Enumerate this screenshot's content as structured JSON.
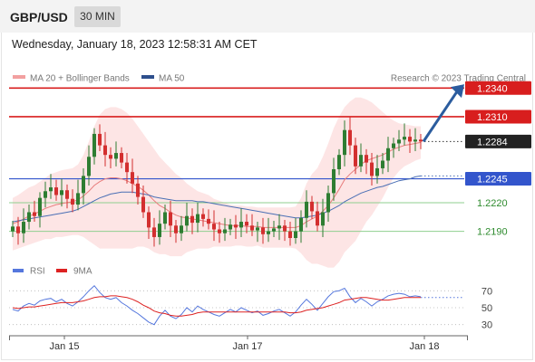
{
  "header": {
    "symbol": "GBP/USD",
    "timeframe": "30 MIN",
    "timestamp": "Wednesday, January 18, 2023 12:58:31 AM CET"
  },
  "legend": {
    "ma20_bb": "MA 20 + Bollinger Bands",
    "ma50": "MA 50",
    "credit": "Research © 2023 Trading Central",
    "rsi": "RSI",
    "rsi_ma": "9MA"
  },
  "colors": {
    "resistance": "#d81e1e",
    "support": "#3355cc",
    "pivot_support": "#8fcf8f",
    "current_price": "#222222",
    "bullish_candle": "#2e7d32",
    "bearish_candle": "#d32f2f",
    "bollinger_fill": "#fde0e0",
    "ma20": "#e87d7d",
    "ma50": "#4a6fb5",
    "rsi_line": "#5577dd",
    "rsi_ma_line": "#dd2222",
    "arrow": "#2b5c9e"
  },
  "chart_data": {
    "type": "candlestick",
    "instrument": "GBP/USD",
    "interval": "30 min",
    "ylim": [
      1.2165,
      1.2345
    ],
    "x_ticks": [
      "Jan 15",
      "Jan 17",
      "Jan 18"
    ],
    "current_price": 1.2284,
    "levels": [
      {
        "label": "1.2340",
        "value": 1.234,
        "kind": "resistance"
      },
      {
        "label": "1.2310",
        "value": 1.231,
        "kind": "resistance"
      },
      {
        "label": "1.2284",
        "value": 1.2284,
        "kind": "current"
      },
      {
        "label": "1.2245",
        "value": 1.2245,
        "kind": "support"
      },
      {
        "label": "1.2220",
        "value": 1.222,
        "kind": "pivot"
      },
      {
        "label": "1.2190",
        "value": 1.219,
        "kind": "pivot"
      }
    ],
    "forecast": "bullish",
    "close": [
      1.2195,
      1.2188,
      1.22,
      1.221,
      1.2206,
      1.2225,
      1.2232,
      1.2236,
      1.2228,
      1.2233,
      1.2224,
      1.2218,
      1.223,
      1.2248,
      1.2268,
      1.2292,
      1.228,
      1.227,
      1.2266,
      1.2272,
      1.2262,
      1.2252,
      1.224,
      1.2226,
      1.221,
      1.2194,
      1.2184,
      1.2198,
      1.221,
      1.2196,
      1.2188,
      1.2196,
      1.2206,
      1.2199,
      1.2208,
      1.2203,
      1.2198,
      1.2192,
      1.2188,
      1.2192,
      1.2197,
      1.2194,
      1.22,
      1.2196,
      1.2191,
      1.2194,
      1.2187,
      1.219,
      1.2193,
      1.2196,
      1.219,
      1.2183,
      1.219,
      1.2204,
      1.2221,
      1.2211,
      1.2196,
      1.221,
      1.223,
      1.2255,
      1.227,
      1.2296,
      1.228,
      1.2258,
      1.227,
      1.2262,
      1.2248,
      1.2256,
      1.2264,
      1.2277,
      1.2282,
      1.2286,
      1.2289,
      1.2284,
      1.2286,
      1.2284
    ],
    "ma20": [
      1.2198,
      1.22,
      1.2203,
      1.2206,
      1.2208,
      1.2211,
      1.2214,
      1.2216,
      1.2218,
      1.2219,
      1.222,
      1.2221,
      1.2223,
      1.2227,
      1.2232,
      1.2238,
      1.2242,
      1.2245,
      1.2246,
      1.2246,
      1.2245,
      1.2243,
      1.224,
      1.2237,
      1.2233,
      1.2228,
      1.2222,
      1.2217,
      1.2214,
      1.221,
      1.2207,
      1.2205,
      1.2204,
      1.2203,
      1.2202,
      1.2201,
      1.22,
      1.2199,
      1.2198,
      1.2197,
      1.2196,
      1.2196,
      1.2196,
      1.2195,
      1.2195,
      1.2195,
      1.2194,
      1.2194,
      1.2194,
      1.2194,
      1.2194,
      1.2194,
      1.2194,
      1.2196,
      1.22,
      1.2203,
      1.2206,
      1.2211,
      1.2217,
      1.2225,
      1.2234,
      1.2244,
      1.225,
      1.2255,
      1.226,
      1.2264,
      1.2266,
      1.2268,
      1.227,
      1.2273,
      1.2276,
      1.2278,
      1.228,
      1.2281,
      1.2282,
      1.2283
    ],
    "bb_upper": [
      1.2225,
      1.2228,
      1.2232,
      1.2236,
      1.2238,
      1.2242,
      1.2246,
      1.225,
      1.2252,
      1.2254,
      1.2255,
      1.2256,
      1.226,
      1.227,
      1.2284,
      1.23,
      1.2312,
      1.2318,
      1.232,
      1.232,
      1.2318,
      1.2314,
      1.2308,
      1.23,
      1.2292,
      1.2284,
      1.2276,
      1.2268,
      1.2262,
      1.2256,
      1.225,
      1.2246,
      1.224,
      1.2236,
      1.2232,
      1.223,
      1.2228,
      1.2224,
      1.2222,
      1.222,
      1.2218,
      1.2217,
      1.2217,
      1.2216,
      1.2216,
      1.2215,
      1.2215,
      1.2215,
      1.2215,
      1.2215,
      1.2215,
      1.2215,
      1.2216,
      1.2225,
      1.224,
      1.225,
      1.2256,
      1.2268,
      1.2282,
      1.2298,
      1.231,
      1.232,
      1.2326,
      1.233,
      1.233,
      1.2328,
      1.2325,
      1.232,
      1.2315,
      1.231,
      1.2306,
      1.2303,
      1.2302,
      1.2301,
      1.23,
      1.23
    ],
    "bb_lower": [
      1.217,
      1.2172,
      1.2174,
      1.2176,
      1.2178,
      1.218,
      1.2182,
      1.2182,
      1.2184,
      1.2184,
      1.2185,
      1.2186,
      1.2186,
      1.2184,
      1.218,
      1.2176,
      1.2172,
      1.2172,
      1.2172,
      1.2172,
      1.2172,
      1.2172,
      1.2172,
      1.2174,
      1.2174,
      1.2172,
      1.2168,
      1.2166,
      1.2166,
      1.2164,
      1.2164,
      1.2164,
      1.2168,
      1.217,
      1.2172,
      1.2172,
      1.2172,
      1.2174,
      1.2174,
      1.2174,
      1.2174,
      1.2175,
      1.2175,
      1.2174,
      1.2174,
      1.2175,
      1.2173,
      1.2173,
      1.2173,
      1.2173,
      1.2173,
      1.2173,
      1.2172,
      1.2167,
      1.216,
      1.2156,
      1.2156,
      1.2154,
      1.2152,
      1.2152,
      1.2158,
      1.2168,
      1.2174,
      1.218,
      1.219,
      1.22,
      1.2207,
      1.2216,
      1.2225,
      1.2236,
      1.2246,
      1.2253,
      1.2258,
      1.2261,
      1.2264,
      1.2266
    ],
    "ma50": [
      1.22,
      1.2201,
      1.2202,
      1.2203,
      1.2204,
      1.2205,
      1.2206,
      1.2207,
      1.2208,
      1.2209,
      1.221,
      1.2211,
      1.2213,
      1.2216,
      1.2219,
      1.2222,
      1.2225,
      1.2227,
      1.2229,
      1.223,
      1.2231,
      1.2231,
      1.2231,
      1.223,
      1.2229,
      1.2228,
      1.2226,
      1.2225,
      1.2224,
      1.2223,
      1.2222,
      1.2222,
      1.2222,
      1.2222,
      1.2221,
      1.2221,
      1.222,
      1.2219,
      1.2218,
      1.2217,
      1.2216,
      1.2215,
      1.2214,
      1.2213,
      1.2212,
      1.2211,
      1.221,
      1.2209,
      1.2208,
      1.2207,
      1.2206,
      1.2205,
      1.2204,
      1.2204,
      1.2205,
      1.2206,
      1.2207,
      1.2209,
      1.2211,
      1.2214,
      1.2217,
      1.2221,
      1.2224,
      1.2227,
      1.223,
      1.2232,
      1.2234,
      1.2236,
      1.2237,
      1.2239,
      1.2241,
      1.2243,
      1.2244,
      1.2245,
      1.2247,
      1.2248
    ],
    "rsi": {
      "ylim": [
        20,
        80
      ],
      "ticks": [
        70,
        50,
        30
      ],
      "rsi": [
        48,
        46,
        52,
        55,
        53,
        58,
        60,
        61,
        57,
        60,
        55,
        52,
        57,
        63,
        70,
        76,
        68,
        62,
        60,
        62,
        56,
        52,
        47,
        43,
        38,
        33,
        30,
        40,
        47,
        40,
        37,
        42,
        50,
        45,
        52,
        48,
        45,
        42,
        40,
        44,
        48,
        45,
        50,
        47,
        44,
        46,
        41,
        43,
        46,
        48,
        44,
        40,
        45,
        53,
        60,
        54,
        47,
        55,
        63,
        69,
        70,
        73,
        63,
        56,
        61,
        57,
        52,
        57,
        60,
        64,
        66,
        67,
        66,
        63,
        64,
        63
      ],
      "ma9": [
        50,
        49,
        50,
        51,
        51,
        52,
        53,
        54,
        55,
        56,
        56,
        56,
        57,
        58,
        60,
        62,
        63,
        63,
        64,
        64,
        63,
        62,
        60,
        57,
        53,
        50,
        46,
        44,
        43,
        41,
        40,
        40,
        41,
        42,
        44,
        45,
        45,
        45,
        45,
        45,
        45,
        45,
        45,
        45,
        45,
        45,
        45,
        45,
        45,
        45,
        45,
        44,
        44,
        45,
        47,
        48,
        49,
        50,
        52,
        54,
        56,
        59,
        60,
        61,
        62,
        62,
        61,
        60,
        59,
        59,
        60,
        61,
        62,
        62,
        62,
        62
      ]
    }
  }
}
